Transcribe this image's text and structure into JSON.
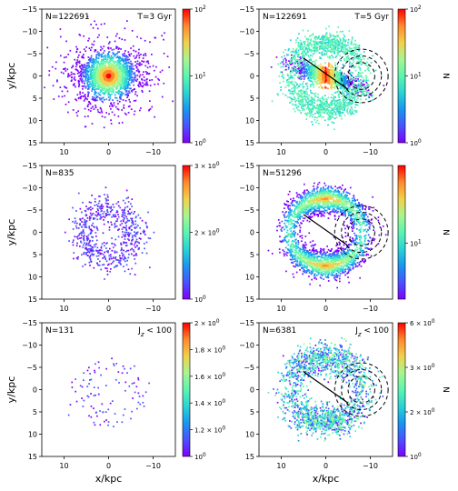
{
  "chart_data": {
    "type": "scatter",
    "x_label": "x/kpc",
    "y_label": "y/kpc",
    "cbar_label": "N",
    "x_ticks": [
      10,
      0,
      -10
    ],
    "y_ticks": [
      -15,
      -10,
      -5,
      0,
      5,
      10,
      15
    ],
    "xlim": [
      15,
      -15
    ],
    "ylim": [
      -15,
      15
    ],
    "panels": [
      {
        "id": "r1c1",
        "count_label": "N=122691",
        "corner_label": "T=3 Gyr",
        "morphology": "central-bar",
        "density": "high",
        "cbar": {
          "scale": "log",
          "ticks": [
            "10^0",
            "10^1",
            "10^2"
          ],
          "label": ""
        }
      },
      {
        "id": "r1c2",
        "count_label": "N=122691",
        "corner_label": "T=5 Gyr",
        "morphology": "bar-plus-arcs",
        "density": "high",
        "cbar": {
          "scale": "log",
          "ticks": [
            "10^0",
            "10^1",
            "10^2"
          ],
          "label": "N"
        },
        "annotations": {
          "line": true,
          "circles": true
        }
      },
      {
        "id": "r2c1",
        "count_label": "N=835",
        "corner_label": "",
        "morphology": "ring",
        "density": "low",
        "cbar": {
          "scale": "log",
          "ticks": [
            "10^0",
            "2 × 10^0",
            "3 × 10^0"
          ],
          "label": ""
        }
      },
      {
        "id": "r2c2",
        "count_label": "N=51296",
        "corner_label": "",
        "morphology": "arcs",
        "density": "high",
        "cbar": {
          "scale": "log",
          "ticks": [
            "10^1"
          ],
          "label": "N"
        },
        "annotations": {
          "line": true,
          "circles": true
        }
      },
      {
        "id": "r3c1",
        "count_label": "N=131",
        "corner_label": "J_z < 100",
        "morphology": "ring",
        "density": "very-low",
        "cbar": {
          "scale": "log",
          "ticks": [
            "10^0",
            "1.2 × 10^0",
            "1.4 × 10^0",
            "1.6 × 10^0",
            "1.8 × 10^0",
            "2 × 10^0"
          ],
          "label": ""
        }
      },
      {
        "id": "r3c2",
        "count_label": "N=6381",
        "corner_label": "J_z < 100",
        "morphology": "arcs-noisy",
        "density": "medium",
        "cbar": {
          "scale": "log",
          "ticks": [
            "10^0",
            "2 × 10^0",
            "3 × 10^0",
            "6 × 10^0"
          ],
          "label": "N"
        },
        "annotations": {
          "line": true,
          "circles": true
        }
      }
    ],
    "colormap": [
      "#7f00ff",
      "#4a52ff",
      "#1996f0",
      "#2ad4d4",
      "#5cf5b0",
      "#a8f590",
      "#f2d04a",
      "#ff8a2e",
      "#ff0000"
    ]
  }
}
